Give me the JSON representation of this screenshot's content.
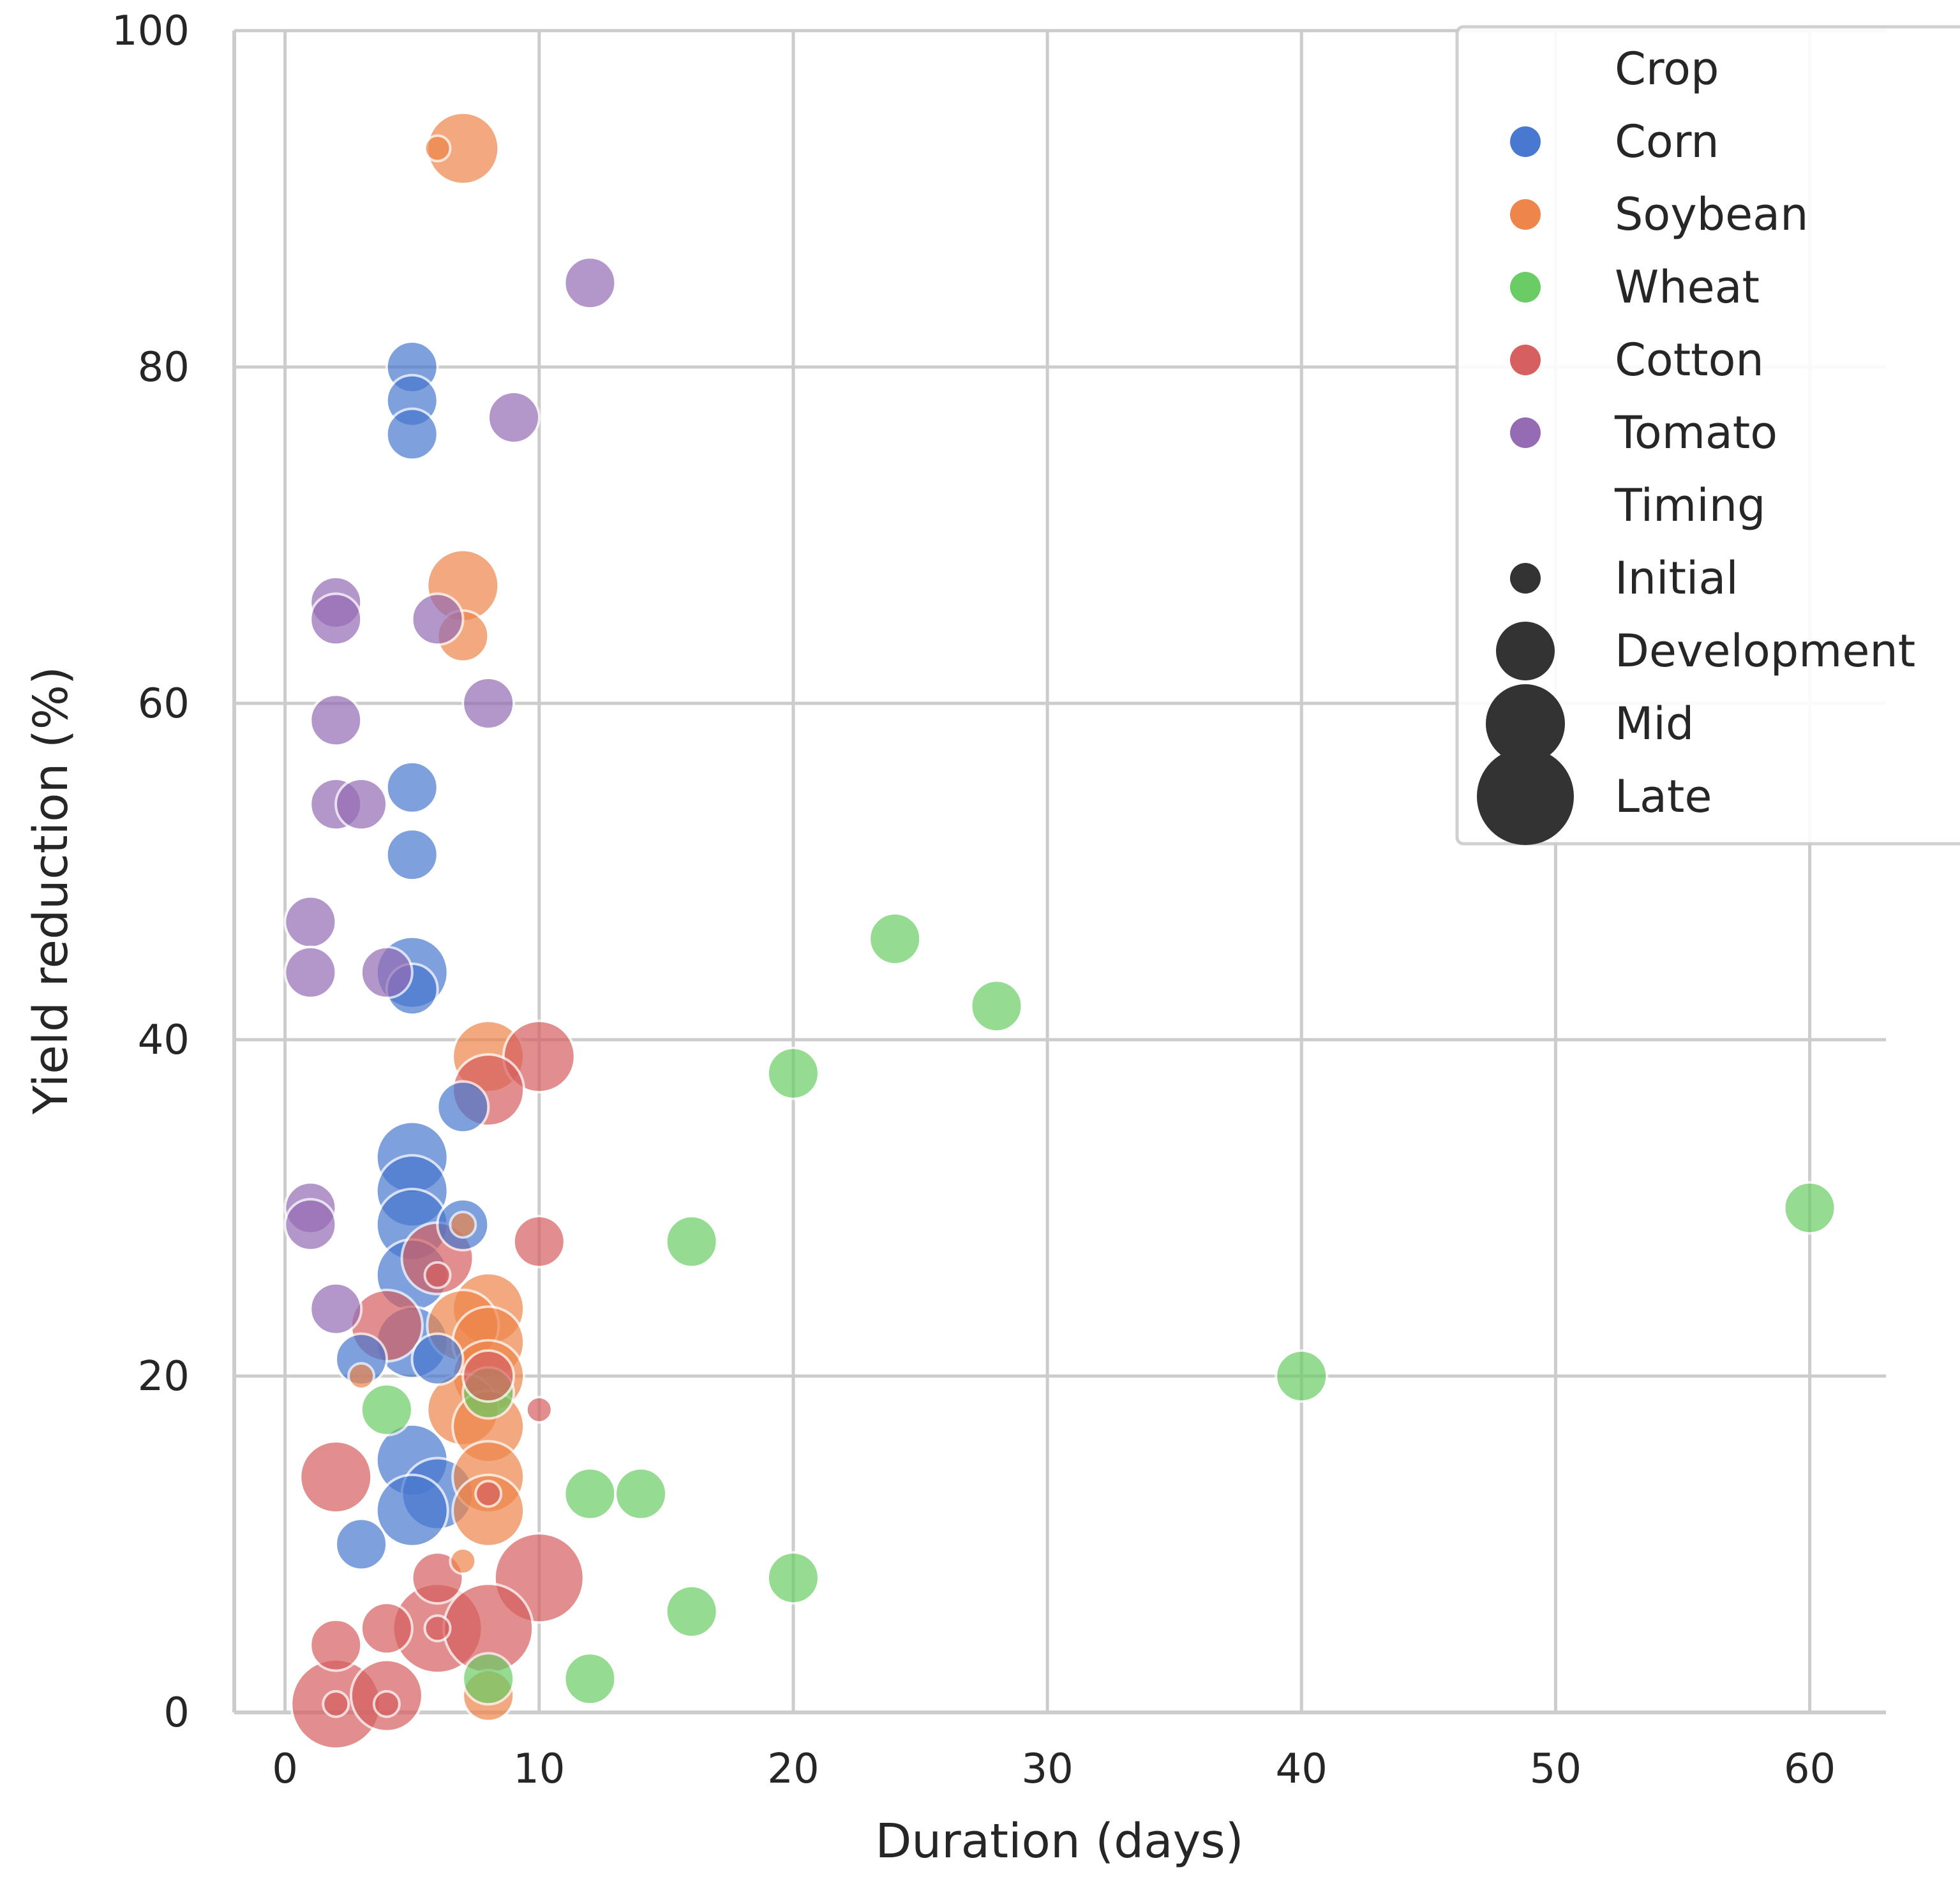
{
  "chart_data": {
    "type": "scatter",
    "title": "",
    "xlabel": "Duration (days)",
    "ylabel": "Yield reduction (%)",
    "xlim": [
      -2,
      63
    ],
    "ylim": [
      0,
      100
    ],
    "x_ticks": [
      0,
      10,
      20,
      30,
      40,
      50,
      60
    ],
    "y_ticks": [
      0,
      20,
      40,
      60,
      80,
      100
    ],
    "grid": true,
    "legend": {
      "placement": "top-right",
      "hue_title": "Crop",
      "size_title": "Timing"
    },
    "crops": [
      {
        "name": "Corn",
        "color": "#4878d0"
      },
      {
        "name": "Soybean",
        "color": "#ee854a"
      },
      {
        "name": "Wheat",
        "color": "#6acc64"
      },
      {
        "name": "Cotton",
        "color": "#d65f5f"
      },
      {
        "name": "Tomato",
        "color": "#956cb4"
      }
    ],
    "timings": [
      "Initial",
      "Development",
      "Mid",
      "Late"
    ],
    "points": [
      {
        "crop": "Corn",
        "x": 5,
        "y": 80,
        "t": "Development"
      },
      {
        "crop": "Corn",
        "x": 5,
        "y": 78,
        "t": "Development"
      },
      {
        "crop": "Corn",
        "x": 5,
        "y": 76,
        "t": "Development"
      },
      {
        "crop": "Corn",
        "x": 5,
        "y": 55,
        "t": "Development"
      },
      {
        "crop": "Corn",
        "x": 5,
        "y": 51,
        "t": "Development"
      },
      {
        "crop": "Corn",
        "x": 5,
        "y": 44,
        "t": "Mid"
      },
      {
        "crop": "Corn",
        "x": 5,
        "y": 43,
        "t": "Development"
      },
      {
        "crop": "Corn",
        "x": 7,
        "y": 36,
        "t": "Development"
      },
      {
        "crop": "Corn",
        "x": 5,
        "y": 33,
        "t": "Mid"
      },
      {
        "crop": "Corn",
        "x": 5,
        "y": 31,
        "t": "Mid"
      },
      {
        "crop": "Corn",
        "x": 5,
        "y": 29,
        "t": "Mid"
      },
      {
        "crop": "Corn",
        "x": 7,
        "y": 29,
        "t": "Development"
      },
      {
        "crop": "Corn",
        "x": 5,
        "y": 26,
        "t": "Mid"
      },
      {
        "crop": "Corn",
        "x": 5,
        "y": 22,
        "t": "Mid"
      },
      {
        "crop": "Corn",
        "x": 3,
        "y": 21,
        "t": "Development"
      },
      {
        "crop": "Corn",
        "x": 6,
        "y": 21,
        "t": "Development"
      },
      {
        "crop": "Corn",
        "x": 5,
        "y": 15,
        "t": "Mid"
      },
      {
        "crop": "Corn",
        "x": 6,
        "y": 13,
        "t": "Mid"
      },
      {
        "crop": "Corn",
        "x": 5,
        "y": 12,
        "t": "Mid"
      },
      {
        "crop": "Corn",
        "x": 3,
        "y": 10,
        "t": "Development"
      },
      {
        "crop": "Soybean",
        "x": 7,
        "y": 93,
        "t": "Mid"
      },
      {
        "crop": "Soybean",
        "x": 6,
        "y": 93,
        "t": "Initial"
      },
      {
        "crop": "Soybean",
        "x": 7,
        "y": 67,
        "t": "Mid"
      },
      {
        "crop": "Soybean",
        "x": 7,
        "y": 64,
        "t": "Development"
      },
      {
        "crop": "Soybean",
        "x": 8,
        "y": 39,
        "t": "Mid"
      },
      {
        "crop": "Soybean",
        "x": 7,
        "y": 29,
        "t": "Initial"
      },
      {
        "crop": "Soybean",
        "x": 8,
        "y": 24,
        "t": "Mid"
      },
      {
        "crop": "Soybean",
        "x": 7,
        "y": 23,
        "t": "Mid"
      },
      {
        "crop": "Soybean",
        "x": 8,
        "y": 22,
        "t": "Mid"
      },
      {
        "crop": "Soybean",
        "x": 3,
        "y": 20,
        "t": "Initial"
      },
      {
        "crop": "Soybean",
        "x": 8,
        "y": 20,
        "t": "Mid"
      },
      {
        "crop": "Soybean",
        "x": 7,
        "y": 18,
        "t": "Mid"
      },
      {
        "crop": "Soybean",
        "x": 8,
        "y": 17,
        "t": "Mid"
      },
      {
        "crop": "Soybean",
        "x": 8,
        "y": 14,
        "t": "Mid"
      },
      {
        "crop": "Soybean",
        "x": 8,
        "y": 12,
        "t": "Mid"
      },
      {
        "crop": "Soybean",
        "x": 7,
        "y": 9,
        "t": "Initial"
      },
      {
        "crop": "Soybean",
        "x": 8,
        "y": 1,
        "t": "Development"
      },
      {
        "crop": "Wheat",
        "x": 24,
        "y": 46,
        "t": "Development"
      },
      {
        "crop": "Wheat",
        "x": 28,
        "y": 42,
        "t": "Development"
      },
      {
        "crop": "Wheat",
        "x": 20,
        "y": 38,
        "t": "Development"
      },
      {
        "crop": "Wheat",
        "x": 60,
        "y": 30,
        "t": "Development"
      },
      {
        "crop": "Wheat",
        "x": 16,
        "y": 28,
        "t": "Development"
      },
      {
        "crop": "Wheat",
        "x": 40,
        "y": 20,
        "t": "Development"
      },
      {
        "crop": "Wheat",
        "x": 8,
        "y": 19,
        "t": "Development"
      },
      {
        "crop": "Wheat",
        "x": 4,
        "y": 18,
        "t": "Development"
      },
      {
        "crop": "Wheat",
        "x": 12,
        "y": 13,
        "t": "Development"
      },
      {
        "crop": "Wheat",
        "x": 14,
        "y": 13,
        "t": "Development"
      },
      {
        "crop": "Wheat",
        "x": 20,
        "y": 8,
        "t": "Development"
      },
      {
        "crop": "Wheat",
        "x": 16,
        "y": 6,
        "t": "Development"
      },
      {
        "crop": "Wheat",
        "x": 12,
        "y": 2,
        "t": "Development"
      },
      {
        "crop": "Wheat",
        "x": 8,
        "y": 2,
        "t": "Development"
      },
      {
        "crop": "Cotton",
        "x": 10,
        "y": 39,
        "t": "Mid"
      },
      {
        "crop": "Cotton",
        "x": 8,
        "y": 37,
        "t": "Mid"
      },
      {
        "crop": "Cotton",
        "x": 10,
        "y": 28,
        "t": "Development"
      },
      {
        "crop": "Cotton",
        "x": 6,
        "y": 27,
        "t": "Mid"
      },
      {
        "crop": "Cotton",
        "x": 6,
        "y": 26,
        "t": "Initial"
      },
      {
        "crop": "Cotton",
        "x": 4,
        "y": 23,
        "t": "Mid"
      },
      {
        "crop": "Cotton",
        "x": 8,
        "y": 20,
        "t": "Development"
      },
      {
        "crop": "Cotton",
        "x": 10,
        "y": 18,
        "t": "Initial"
      },
      {
        "crop": "Cotton",
        "x": 2,
        "y": 14,
        "t": "Mid"
      },
      {
        "crop": "Cotton",
        "x": 8,
        "y": 13,
        "t": "Initial"
      },
      {
        "crop": "Cotton",
        "x": 6,
        "y": 8,
        "t": "Development"
      },
      {
        "crop": "Cotton",
        "x": 10,
        "y": 8,
        "t": "Late"
      },
      {
        "crop": "Cotton",
        "x": 6,
        "y": 5,
        "t": "Late"
      },
      {
        "crop": "Cotton",
        "x": 8,
        "y": 5,
        "t": "Late"
      },
      {
        "crop": "Cotton",
        "x": 6,
        "y": 5,
        "t": "Initial"
      },
      {
        "crop": "Cotton",
        "x": 4,
        "y": 5,
        "t": "Development"
      },
      {
        "crop": "Cotton",
        "x": 2,
        "y": 4,
        "t": "Development"
      },
      {
        "crop": "Cotton",
        "x": 4,
        "y": 1,
        "t": "Mid"
      },
      {
        "crop": "Cotton",
        "x": 2,
        "y": 0.5,
        "t": "Late"
      },
      {
        "crop": "Cotton",
        "x": 2,
        "y": 0.5,
        "t": "Initial"
      },
      {
        "crop": "Cotton",
        "x": 4,
        "y": 0.5,
        "t": "Initial"
      },
      {
        "crop": "Tomato",
        "x": 12,
        "y": 85,
        "t": "Development"
      },
      {
        "crop": "Tomato",
        "x": 9,
        "y": 77,
        "t": "Development"
      },
      {
        "crop": "Tomato",
        "x": 2,
        "y": 66,
        "t": "Development"
      },
      {
        "crop": "Tomato",
        "x": 2,
        "y": 65,
        "t": "Development"
      },
      {
        "crop": "Tomato",
        "x": 6,
        "y": 65,
        "t": "Development"
      },
      {
        "crop": "Tomato",
        "x": 8,
        "y": 60,
        "t": "Development"
      },
      {
        "crop": "Tomato",
        "x": 2,
        "y": 59,
        "t": "Development"
      },
      {
        "crop": "Tomato",
        "x": 2,
        "y": 54,
        "t": "Development"
      },
      {
        "crop": "Tomato",
        "x": 3,
        "y": 54,
        "t": "Development"
      },
      {
        "crop": "Tomato",
        "x": 1,
        "y": 47,
        "t": "Development"
      },
      {
        "crop": "Tomato",
        "x": 1,
        "y": 44,
        "t": "Development"
      },
      {
        "crop": "Tomato",
        "x": 4,
        "y": 44,
        "t": "Development"
      },
      {
        "crop": "Tomato",
        "x": 1,
        "y": 30,
        "t": "Development"
      },
      {
        "crop": "Tomato",
        "x": 1,
        "y": 29,
        "t": "Development"
      },
      {
        "crop": "Tomato",
        "x": 2,
        "y": 24,
        "t": "Development"
      }
    ]
  }
}
